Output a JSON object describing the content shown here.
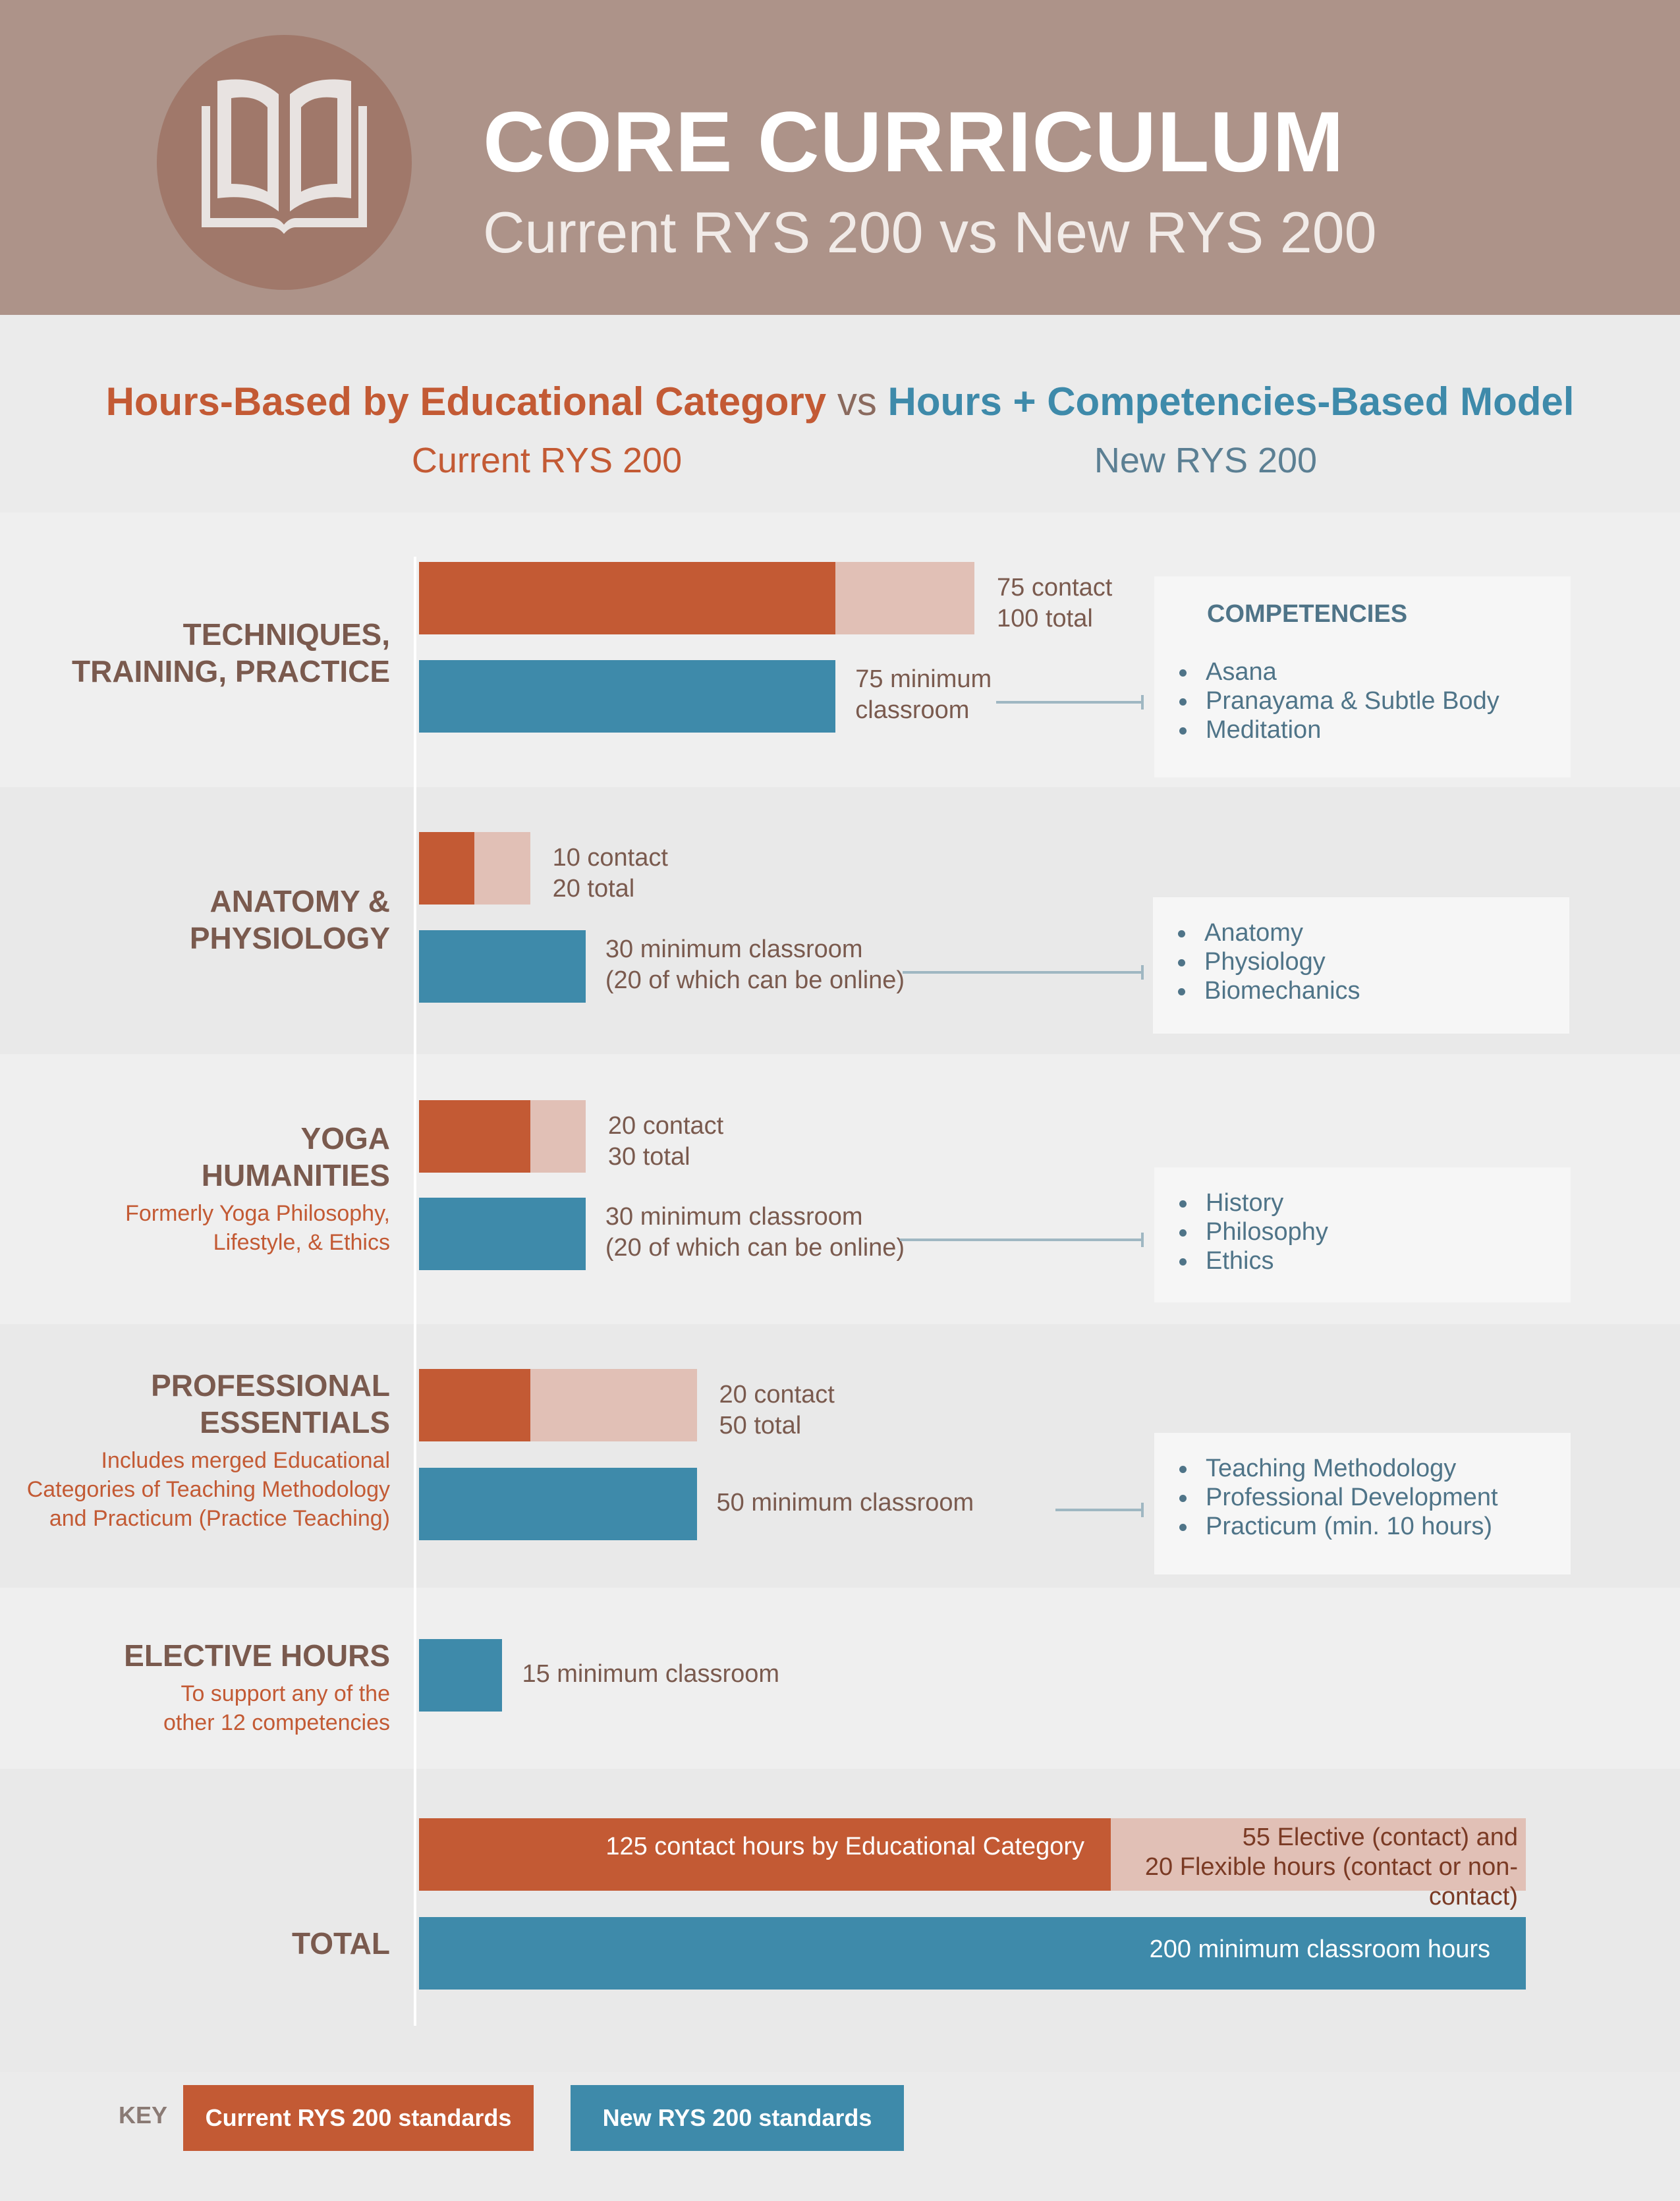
{
  "header": {
    "title": "CORE CURRICULUM",
    "subtitle": "Current RYS 200 vs New RYS 200",
    "icon": "open-book-icon"
  },
  "intro": {
    "current_model": "Hours-Based by Educational Category",
    "vs": "vs",
    "new_model": "Hours + Competencies-Based Model",
    "current_label": "Current RYS 200",
    "new_label": "New RYS 200"
  },
  "colors": {
    "current": "#c35a34",
    "current_light": "#e1c0b6",
    "new": "#3e8aaa",
    "header_bg": "#ad9389"
  },
  "chart_data": {
    "type": "bar",
    "orientation": "horizontal",
    "x_max_hours": 200,
    "categories": [
      {
        "name_lines": [
          "TECHNIQUES,",
          "TRAINING, PRACTICE"
        ],
        "note_lines": [],
        "current_contact": 75,
        "current_total": 100,
        "current_label": "75 contact\n100 total",
        "new_minimum": 75,
        "new_label": "75 minimum\nclassroom",
        "competencies_title": "COMPETENCIES",
        "competencies": [
          "Asana",
          "Pranayama & Subtle Body",
          "Meditation"
        ]
      },
      {
        "name_lines": [
          "ANATOMY &",
          "PHYSIOLOGY"
        ],
        "note_lines": [],
        "current_contact": 10,
        "current_total": 20,
        "current_label": "10 contact\n20 total",
        "new_minimum": 30,
        "new_label": "30 minimum classroom\n(20 of which can be online)",
        "competencies_title": "",
        "competencies": [
          "Anatomy",
          "Physiology",
          "Biomechanics"
        ]
      },
      {
        "name_lines": [
          "YOGA",
          "HUMANITIES"
        ],
        "note_lines": [
          "Formerly Yoga Philosophy,",
          "Lifestyle, & Ethics"
        ],
        "current_contact": 20,
        "current_total": 30,
        "current_label": "20 contact\n30 total",
        "new_minimum": 30,
        "new_label": "30 minimum classroom\n(20 of which can be online)",
        "competencies_title": "",
        "competencies": [
          "History",
          "Philosophy",
          "Ethics"
        ]
      },
      {
        "name_lines": [
          "PROFESSIONAL",
          "ESSENTIALS"
        ],
        "note_lines": [
          "Includes merged Educational",
          "Categories of Teaching Methodology",
          "and Practicum (Practice Teaching)"
        ],
        "current_contact": 20,
        "current_total": 50,
        "current_label": "20 contact\n50 total",
        "new_minimum": 50,
        "new_label": "50 minimum classroom",
        "competencies_title": "",
        "competencies": [
          "Teaching Methodology",
          "Professional Development",
          "Practicum (min. 10 hours)"
        ]
      },
      {
        "name_lines": [
          "ELECTIVE HOURS"
        ],
        "note_lines": [
          "To support any of the",
          "other 12 competencies"
        ],
        "current_contact": null,
        "current_total": null,
        "current_label": "",
        "new_minimum": 15,
        "new_label": "15 minimum classroom",
        "competencies_title": "",
        "competencies": []
      }
    ],
    "total": {
      "name": "TOTAL",
      "current_contact": 125,
      "current_other": 75,
      "current_contact_label": "125 contact hours by Educational Category",
      "current_other_label": "55 Elective (contact) and\n20 Flexible hours (contact or non-contact)",
      "new_minimum": 200,
      "new_label": "200 minimum classroom hours"
    },
    "legend": {
      "key_label": "KEY",
      "current": "Current RYS 200 standards",
      "new": "New RYS 200 standards"
    }
  }
}
